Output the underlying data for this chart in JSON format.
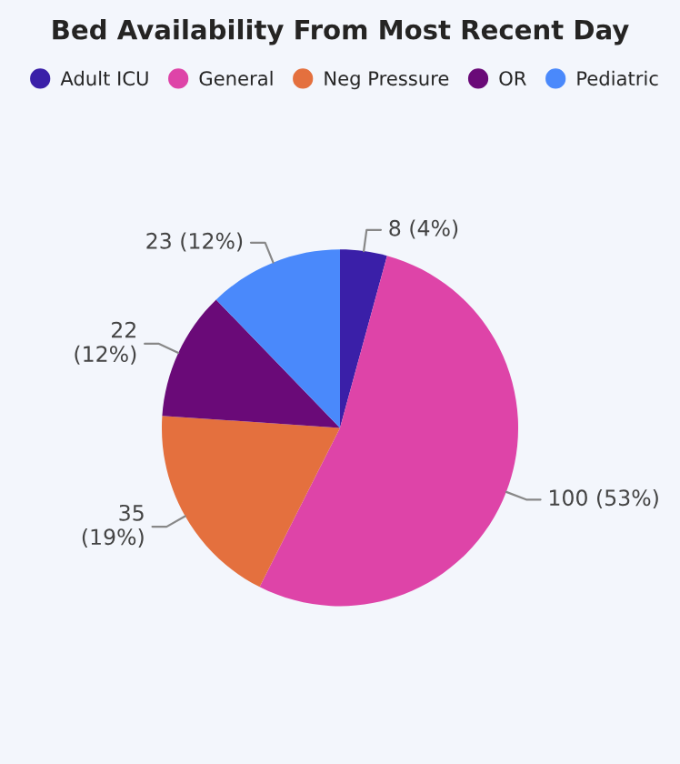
{
  "chart_data": {
    "type": "pie",
    "title": "Bed Availability From Most Recent Day",
    "categories": [
      "Adult ICU",
      "General",
      "Neg Pressure",
      "OR",
      "Pediatric"
    ],
    "values": [
      8,
      100,
      35,
      22,
      23
    ],
    "colors": [
      "#3a1fa8",
      "#de44a8",
      "#e4703e",
      "#6a0a78",
      "#4a89fb"
    ],
    "value_labels": [
      "8 (4%)",
      "100 (53%)",
      "35\n(19%)",
      "22\n(12%)",
      "23 (12%)"
    ],
    "legend": "top"
  }
}
